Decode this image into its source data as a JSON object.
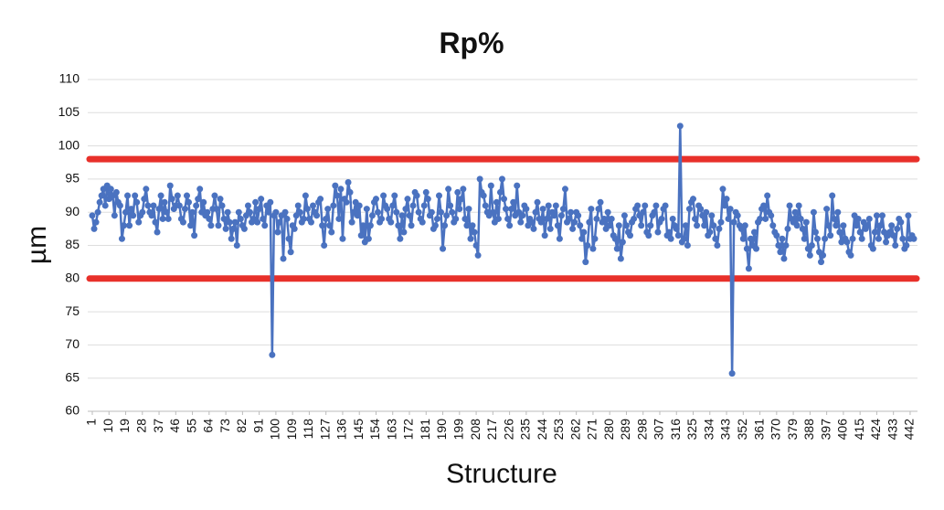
{
  "chart_data": {
    "type": "line",
    "title": "Rp%",
    "x_label": "Structure",
    "y_label": "µm",
    "x": [
      1,
      2,
      3,
      4,
      5,
      6,
      7,
      8,
      9,
      10,
      11,
      12,
      13,
      14,
      15,
      16,
      17,
      18,
      19,
      20,
      21,
      22,
      23,
      24,
      25,
      26,
      27,
      28,
      29,
      30,
      31,
      32,
      33,
      34,
      35,
      36,
      37,
      38,
      39,
      40,
      41,
      42,
      43,
      44,
      45,
      46,
      47,
      48,
      49,
      50,
      51,
      52,
      53,
      54,
      55,
      56,
      57,
      58,
      59,
      60,
      61,
      62,
      63,
      64,
      65,
      66,
      67,
      68,
      69,
      70,
      71,
      72,
      73,
      74,
      75,
      76,
      77,
      78,
      79,
      80,
      81,
      82,
      83,
      84,
      85,
      86,
      87,
      88,
      89,
      90,
      91,
      92,
      93,
      94,
      95,
      96,
      97,
      98,
      99,
      100,
      101,
      102,
      103,
      104,
      105,
      106,
      107,
      108,
      109,
      110,
      111,
      112,
      113,
      114,
      115,
      116,
      117,
      118,
      119,
      120,
      121,
      122,
      123,
      124,
      125,
      126,
      127,
      128,
      129,
      130,
      131,
      132,
      133,
      134,
      135,
      136,
      137,
      138,
      139,
      140,
      141,
      142,
      143,
      144,
      145,
      146,
      147,
      148,
      149,
      150,
      151,
      152,
      153,
      154,
      155,
      156,
      157,
      158,
      159,
      160,
      161,
      162,
      163,
      164,
      165,
      166,
      167,
      168,
      169,
      170,
      171,
      172,
      173,
      174,
      175,
      176,
      177,
      178,
      179,
      180,
      181,
      182,
      183,
      184,
      185,
      186,
      187,
      188,
      189,
      190,
      191,
      192,
      193,
      194,
      195,
      196,
      197,
      198,
      199,
      200,
      201,
      202,
      203,
      204,
      205,
      206,
      207,
      208,
      209,
      210,
      211,
      212,
      213,
      214,
      215,
      216,
      217,
      218,
      219,
      220,
      221,
      222,
      223,
      224,
      225,
      226,
      227,
      228,
      229,
      230,
      231,
      232,
      233,
      234,
      235,
      236,
      237,
      238,
      239,
      240,
      241,
      242,
      243,
      244,
      245,
      246,
      247,
      248,
      249,
      250,
      251,
      252,
      253,
      254,
      255,
      256,
      257,
      258,
      259,
      260,
      261,
      262,
      263,
      264,
      265,
      266,
      267,
      268,
      269,
      270,
      271,
      272,
      273,
      274,
      275,
      276,
      277,
      278,
      279,
      280,
      281,
      282,
      283,
      284,
      285,
      286,
      287,
      288,
      289,
      290,
      291,
      292,
      293,
      294,
      295,
      296,
      297,
      298,
      299,
      300,
      301,
      302,
      303,
      304,
      305,
      306,
      307,
      308,
      309,
      310,
      311,
      312,
      313,
      314,
      315,
      316,
      317,
      318,
      319,
      320,
      321,
      322,
      323,
      324,
      325,
      326,
      327,
      328,
      329,
      330,
      331,
      332,
      333,
      334,
      335,
      336,
      337,
      338,
      339,
      340,
      341,
      342,
      343,
      344,
      345,
      346,
      347,
      348,
      349,
      350,
      351,
      352,
      353,
      354,
      355,
      356,
      357,
      358,
      359,
      360,
      361,
      362,
      363,
      364,
      365,
      366,
      367,
      368,
      369,
      370,
      371,
      372,
      373,
      374,
      375,
      376,
      377,
      378,
      379,
      380,
      381,
      382,
      383,
      384,
      385,
      386,
      387,
      388,
      389,
      390,
      391,
      392,
      393,
      394,
      395,
      396,
      397,
      398,
      399,
      400,
      401,
      402,
      403,
      404,
      405,
      406,
      407,
      408,
      409,
      410,
      411,
      412,
      413,
      414,
      415,
      416,
      417,
      418,
      419,
      420,
      421,
      422,
      423,
      424,
      425,
      426,
      427,
      428,
      429,
      430,
      431,
      432,
      433,
      434,
      435,
      436,
      437,
      438,
      439,
      440,
      441,
      442,
      443,
      444
    ],
    "series": [
      {
        "color": "#4a72c0",
        "values": [
          89.5,
          87.5,
          88.5,
          90,
          91.5,
          92.5,
          93.5,
          91,
          94,
          92,
          93.5,
          92.5,
          89.5,
          93,
          91.5,
          91,
          86,
          88,
          90,
          92.5,
          88,
          90.5,
          89.5,
          92.5,
          91.5,
          88.5,
          89.5,
          90,
          92,
          93.5,
          91,
          90,
          89.5,
          91,
          88.5,
          87,
          90.5,
          92.5,
          89,
          91.5,
          90,
          89,
          94,
          92,
          90.5,
          91,
          92.5,
          91,
          89,
          88.5,
          90.5,
          92.5,
          91.5,
          88,
          90,
          86.5,
          91,
          92,
          93.5,
          90,
          91.5,
          89.5,
          90,
          89,
          88,
          90.5,
          92.5,
          90.5,
          88,
          92,
          91,
          89,
          87.5,
          90,
          88.5,
          86,
          87.5,
          88.5,
          85,
          90,
          89,
          88,
          87.5,
          89.5,
          91,
          90,
          88.5,
          89,
          91.5,
          88.5,
          90.5,
          92,
          89,
          88,
          91,
          90,
          91.5,
          68.5,
          89.5,
          90,
          87,
          88.5,
          89.5,
          83,
          90,
          89,
          86,
          84,
          88,
          87.5,
          89.5,
          91,
          90,
          88.5,
          89,
          92.5,
          90.5,
          89,
          88.5,
          91,
          90,
          89.5,
          91.5,
          92,
          88,
          85,
          89,
          90.5,
          88,
          87,
          91,
          94,
          92.5,
          89,
          93.5,
          86,
          92,
          91.5,
          94.5,
          93,
          88.5,
          90,
          91.5,
          89.5,
          91,
          86.5,
          88,
          85.5,
          90.5,
          86,
          88,
          89.5,
          91.5,
          92,
          90,
          88.5,
          89,
          92.5,
          91,
          90.5,
          89,
          88.5,
          91,
          92.5,
          90,
          88,
          86,
          89.5,
          87,
          90.5,
          92,
          89.5,
          88,
          91,
          93,
          92.5,
          90,
          89,
          88.5,
          91,
          93,
          92,
          89.5,
          90,
          87.5,
          88,
          89,
          92.5,
          90,
          84.5,
          88,
          89.5,
          93.5,
          91,
          90,
          88.5,
          89,
          93,
          90.5,
          92,
          93.5,
          89,
          88,
          90.5,
          86,
          88,
          87,
          85,
          83.5,
          95,
          93,
          92.5,
          91,
          90,
          89.5,
          94,
          90,
          88.5,
          91.5,
          89,
          93,
          95,
          92,
          90.5,
          89,
          88,
          90.5,
          91.5,
          89.5,
          94,
          90,
          88.5,
          89.5,
          91,
          90.5,
          88,
          89,
          88.5,
          87.5,
          90,
          91.5,
          89,
          88.5,
          90.5,
          86.5,
          89,
          91,
          87.5,
          90,
          89.5,
          91,
          88,
          86,
          89.5,
          90.5,
          93.5,
          88.5,
          89,
          90,
          87.5,
          88.5,
          90,
          89.5,
          88,
          86,
          87,
          82.5,
          85,
          88.5,
          90.5,
          84.5,
          86,
          89,
          90.5,
          91.5,
          88.5,
          89,
          87.5,
          90,
          88,
          89,
          86.5,
          86,
          84.5,
          88,
          83,
          85.5,
          89.5,
          88,
          87,
          86.5,
          88.5,
          89,
          90.5,
          91,
          89.5,
          88,
          90,
          91,
          87,
          86.5,
          88,
          89.5,
          90,
          91,
          87,
          88.5,
          89,
          90.5,
          91,
          86.5,
          87,
          86,
          89,
          88,
          87.5,
          86.5,
          103,
          85.5,
          86,
          88,
          85,
          90.5,
          91.5,
          92,
          89,
          88,
          91,
          90.5,
          89.5,
          88,
          90,
          86.5,
          87,
          89.5,
          88,
          86,
          85,
          87.5,
          88.5,
          93.5,
          91,
          92,
          89,
          90.5,
          65.7,
          88.5,
          90,
          89.5,
          88,
          87.5,
          86,
          88,
          84.5,
          81.5,
          86,
          85,
          87,
          84.5,
          88.5,
          89,
          90.5,
          91,
          89,
          92.5,
          90,
          89.5,
          88,
          87,
          86.5,
          85,
          84,
          86,
          83,
          85,
          87.5,
          91,
          89,
          88.5,
          90,
          88,
          91,
          89,
          87.5,
          86,
          88.5,
          84.5,
          83.5,
          85,
          90,
          87,
          86,
          84,
          82.5,
          83.5,
          86,
          90.5,
          88,
          86.5,
          92.5,
          89,
          88,
          90,
          87,
          85.5,
          88,
          86,
          85.5,
          84,
          83.5,
          86,
          89.5,
          88,
          89,
          87,
          86,
          88.5,
          87.5,
          88,
          89,
          85,
          84.5,
          87,
          89.5,
          86,
          88,
          89.5,
          87,
          85.5,
          86.5,
          87,
          88,
          86.5,
          85,
          87.5,
          89,
          88.5,
          86,
          84.5,
          85,
          89.5,
          86,
          86.5,
          86
        ]
      }
    ],
    "reference_lines": [
      {
        "value": 98,
        "color": "#e8302a"
      },
      {
        "value": 80,
        "color": "#e8302a"
      }
    ],
    "xlim": [
      1,
      444
    ],
    "xticks": [
      1,
      10,
      19,
      28,
      37,
      46,
      55,
      64,
      73,
      82,
      91,
      100,
      109,
      118,
      127,
      136,
      145,
      154,
      163,
      172,
      181,
      190,
      199,
      208,
      217,
      226,
      235,
      244,
      253,
      262,
      271,
      280,
      289,
      298,
      307,
      316,
      325,
      334,
      343,
      352,
      361,
      370,
      379,
      388,
      397,
      406,
      415,
      424,
      433,
      442
    ],
    "ylim": [
      60,
      110
    ],
    "yticks": [
      60,
      65,
      70,
      75,
      80,
      85,
      90,
      95,
      100,
      105,
      110
    ],
    "grid": true
  }
}
